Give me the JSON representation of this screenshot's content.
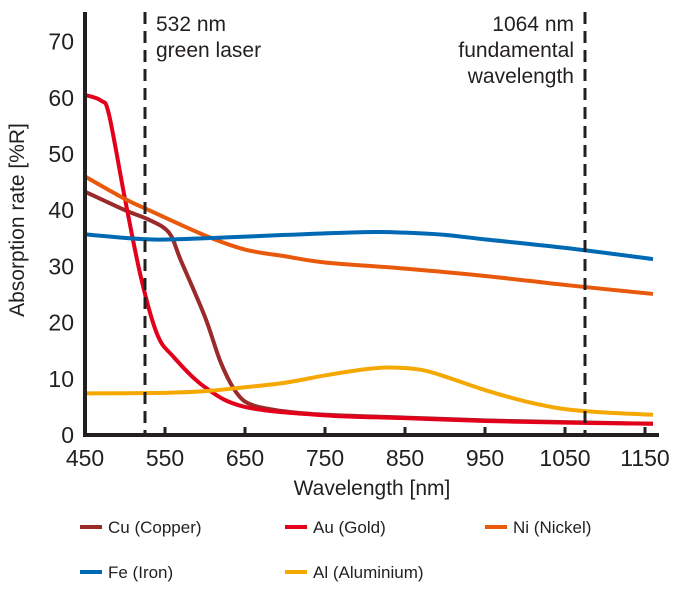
{
  "chart_data": {
    "type": "line",
    "xlabel": "Wavelength [nm]",
    "ylabel": "Absorption rate [%R]",
    "xlim": [
      450,
      1165
    ],
    "ylim": [
      0,
      70
    ],
    "xticks": [
      450,
      550,
      650,
      750,
      850,
      950,
      1050,
      1150
    ],
    "yticks": [
      0,
      10,
      20,
      30,
      40,
      50,
      60,
      70
    ],
    "grid": false,
    "legend_position": "bottom",
    "markers": [
      {
        "x": 525,
        "lines": [
          "532 nm",
          "green laser"
        ],
        "align": "left"
      },
      {
        "x": 1075,
        "lines": [
          "1064 nm",
          "fundamental",
          "wavelength"
        ],
        "align": "right"
      }
    ],
    "series": [
      {
        "name": "Cu (Copper)",
        "color": "#9b2a2a",
        "x": [
          450,
          500,
          530,
          555,
          570,
          600,
          620,
          640,
          660,
          700,
          750,
          850,
          950,
          1050,
          1160
        ],
        "y": [
          43.3,
          40,
          38.3,
          36,
          31,
          21,
          12.8,
          7.4,
          5.3,
          4.2,
          3.6,
          3.1,
          2.6,
          2.3,
          2.0
        ]
      },
      {
        "name": "Au (Gold)",
        "color": "#e2001a",
        "x": [
          450,
          470,
          480,
          500,
          520,
          540,
          560,
          600,
          650,
          750,
          850,
          950,
          1050,
          1160
        ],
        "y": [
          60.5,
          59.5,
          57,
          42,
          28,
          18,
          14,
          8.5,
          5,
          3.5,
          3.0,
          2.5,
          2.2,
          2.0
        ]
      },
      {
        "name": "Ni (Nickel)",
        "color": "#e8590c",
        "x": [
          450,
          500,
          530,
          600,
          650,
          700,
          750,
          850,
          950,
          1050,
          1160
        ],
        "y": [
          46,
          42,
          40,
          35.5,
          33,
          31.8,
          30.7,
          29.6,
          28.3,
          26.7,
          25.1
        ]
      },
      {
        "name": "Fe (Iron)",
        "color": "#0069b4",
        "x": [
          450,
          530,
          600,
          700,
          800,
          850,
          900,
          950,
          1050,
          1160
        ],
        "y": [
          35.7,
          34.8,
          35,
          35.6,
          36.1,
          36,
          35.6,
          34.8,
          33.3,
          31.3
        ]
      },
      {
        "name": "Al (Aluminium)",
        "color": "#f5a800",
        "x": [
          450,
          550,
          600,
          650,
          700,
          750,
          800,
          830,
          870,
          900,
          950,
          1000,
          1050,
          1100,
          1160
        ],
        "y": [
          7.4,
          7.5,
          7.8,
          8.5,
          9.3,
          10.6,
          11.7,
          12,
          11.6,
          10.4,
          8,
          6,
          4.6,
          4.0,
          3.6
        ]
      }
    ]
  }
}
